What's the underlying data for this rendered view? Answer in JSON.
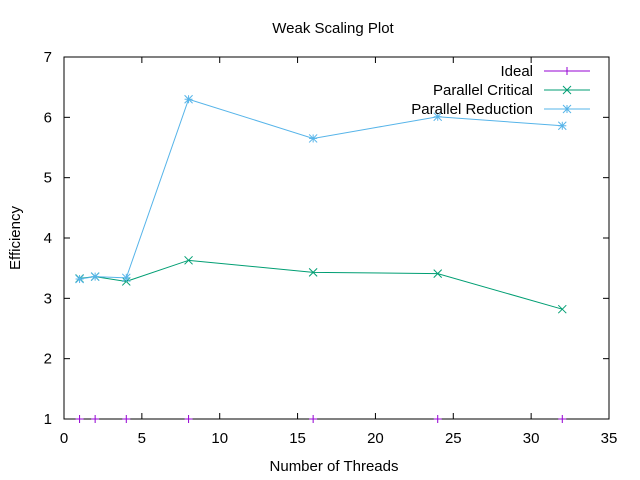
{
  "chart_data": {
    "type": "line",
    "title": "Weak Scaling Plot",
    "xlabel": "Number of Threads",
    "ylabel": "Efficiency",
    "xlim": [
      0,
      35
    ],
    "ylim": [
      1,
      7
    ],
    "xticks": [
      0,
      5,
      10,
      15,
      20,
      25,
      30,
      35
    ],
    "yticks": [
      1,
      2,
      3,
      4,
      5,
      6,
      7
    ],
    "grid": false,
    "legend_position": "top-right",
    "series": [
      {
        "name": "Ideal",
        "color": "#9400d3",
        "marker": "plus",
        "x": [
          1,
          2,
          4,
          8,
          16,
          24,
          32
        ],
        "y": [
          1,
          1,
          1,
          1,
          1,
          1,
          1
        ]
      },
      {
        "name": "Parallel Critical",
        "color": "#009e73",
        "marker": "cross",
        "x": [
          1,
          2,
          4,
          8,
          16,
          24,
          32
        ],
        "y": [
          3.33,
          3.36,
          3.28,
          3.63,
          3.43,
          3.41,
          2.82
        ]
      },
      {
        "name": "Parallel Reduction",
        "color": "#56b4e9",
        "marker": "star",
        "x": [
          1,
          2,
          4,
          8,
          16,
          24,
          32
        ],
        "y": [
          3.32,
          3.36,
          3.34,
          6.3,
          5.65,
          6.01,
          5.86
        ]
      }
    ]
  }
}
